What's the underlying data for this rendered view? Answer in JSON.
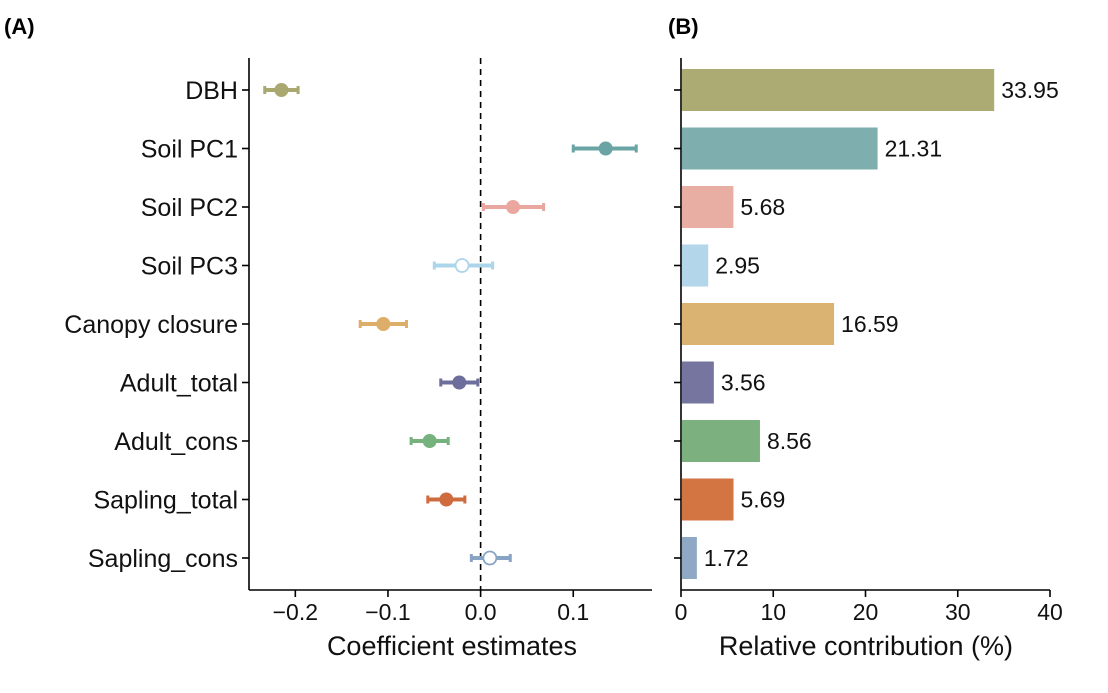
{
  "chart_data": [
    {
      "panel": "(A)",
      "type": "scatter",
      "subtype": "coefficient-plot",
      "xlabel": "Coefficient estimates",
      "xlim": [
        -0.25,
        0.185
      ],
      "xticks": [
        -0.2,
        -0.1,
        0.0,
        0.1
      ],
      "xtick_labels": [
        "−0.2",
        "−0.1",
        "0.0",
        "0.1"
      ],
      "reference_line": 0,
      "categories": [
        "DBH",
        "Soil PC1",
        "Soil PC2",
        "Soil PC3",
        "Canopy closure",
        "Adult_total",
        "Adult_cons",
        "Sapling_total",
        "Sapling_cons"
      ],
      "estimates": [
        -0.215,
        0.135,
        0.035,
        -0.02,
        -0.105,
        -0.023,
        -0.055,
        -0.037,
        0.01
      ],
      "ci_low": [
        -0.233,
        0.1,
        0.003,
        -0.05,
        -0.13,
        -0.043,
        -0.075,
        -0.057,
        -0.01
      ],
      "ci_high": [
        -0.197,
        0.168,
        0.068,
        0.013,
        -0.08,
        -0.003,
        -0.035,
        -0.017,
        0.032
      ],
      "significant": [
        true,
        true,
        true,
        false,
        true,
        true,
        true,
        true,
        false
      ],
      "colors": [
        "#a8a870",
        "#6aa4a4",
        "#e9a79f",
        "#acd4ea",
        "#dcae6a",
        "#6d6e9c",
        "#75b27e",
        "#cf6c3f",
        "#88a4c4"
      ]
    },
    {
      "panel": "(B)",
      "type": "bar",
      "orientation": "horizontal",
      "xlabel": "Relative contribution (%)",
      "xlim": [
        0,
        40
      ],
      "xticks": [
        0,
        10,
        20,
        30,
        40
      ],
      "xtick_labels": [
        "0",
        "10",
        "20",
        "30",
        "40"
      ],
      "categories": [
        "DBH",
        "Soil PC1",
        "Soil PC2",
        "Soil PC3",
        "Canopy closure",
        "Adult_total",
        "Adult_cons",
        "Sapling_total",
        "Sapling_cons"
      ],
      "values": [
        33.95,
        21.31,
        5.68,
        2.95,
        16.59,
        3.56,
        8.56,
        5.69,
        1.72
      ],
      "value_labels": [
        "33.95",
        "21.31",
        "5.68",
        "2.95",
        "16.59",
        "3.56",
        "8.56",
        "5.69",
        "1.72"
      ],
      "colors": [
        "#abab73",
        "#7eaeae",
        "#e8aea4",
        "#b3d6ea",
        "#dab373",
        "#75759f",
        "#7cb17f",
        "#d37443",
        "#8fa9c5"
      ]
    }
  ]
}
